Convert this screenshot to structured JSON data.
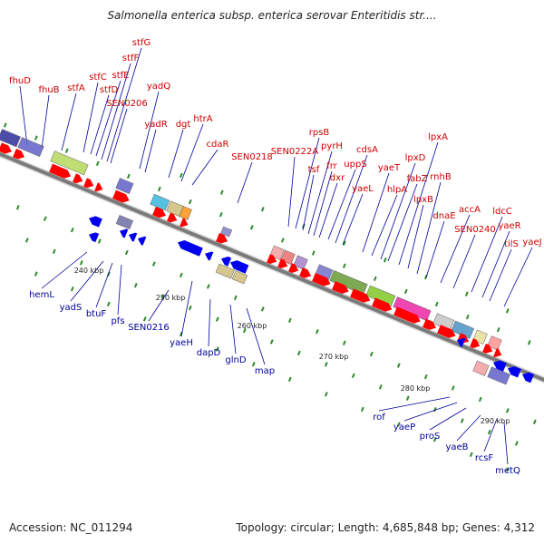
{
  "title": "Salmonella enterica subsp. enterica serovar Enteritidis str....",
  "footer": {
    "accession": "Accession: NC_011294",
    "topology": "Topology: circular; Length: 4,685,848 bp; Genes: 4,312"
  },
  "colors": {
    "forward_label": "#cc0000",
    "reverse_label": "#000099",
    "forward_arrow": "#ff0000",
    "reverse_arrow": "#0000ee",
    "backbone": "#7a7a7a",
    "tick_dot": "#2a8a2a"
  },
  "ticks": [
    {
      "label": "240 kbp"
    },
    {
      "label": "250 kbp"
    },
    {
      "label": "260 kbp"
    },
    {
      "label": "270 kbp"
    },
    {
      "label": "280 kbp"
    },
    {
      "label": "290 kbp"
    }
  ],
  "forward_genes": [
    "fhuD",
    "fhuB",
    "stfA",
    "stfC",
    "stfD",
    "stfE",
    "stfF",
    "stfG",
    "SEN0206",
    "yadQ",
    "yadR",
    "dgt",
    "htrA",
    "cdaR",
    "SEN0218",
    "SEN0222A",
    "rpsB",
    "tsf",
    "pyrH",
    "frr",
    "dxr",
    "uppS",
    "cdsA",
    "yaeL",
    "yaeT",
    "hlpA",
    "lpxD",
    "fabZ",
    "lpxA",
    "lpxB",
    "rnhB",
    "dnaE",
    "accA",
    "SEN0240",
    "ldcC",
    "yaeR",
    "tilS",
    "yaeJ"
  ],
  "reverse_genes": [
    "hemL",
    "yadS",
    "btuF",
    "pfs",
    "SEN0216",
    "yaeH",
    "dapD",
    "glnD",
    "map",
    "rof",
    "yaeP",
    "proS",
    "yaeB",
    "rcsF",
    "metQ"
  ]
}
